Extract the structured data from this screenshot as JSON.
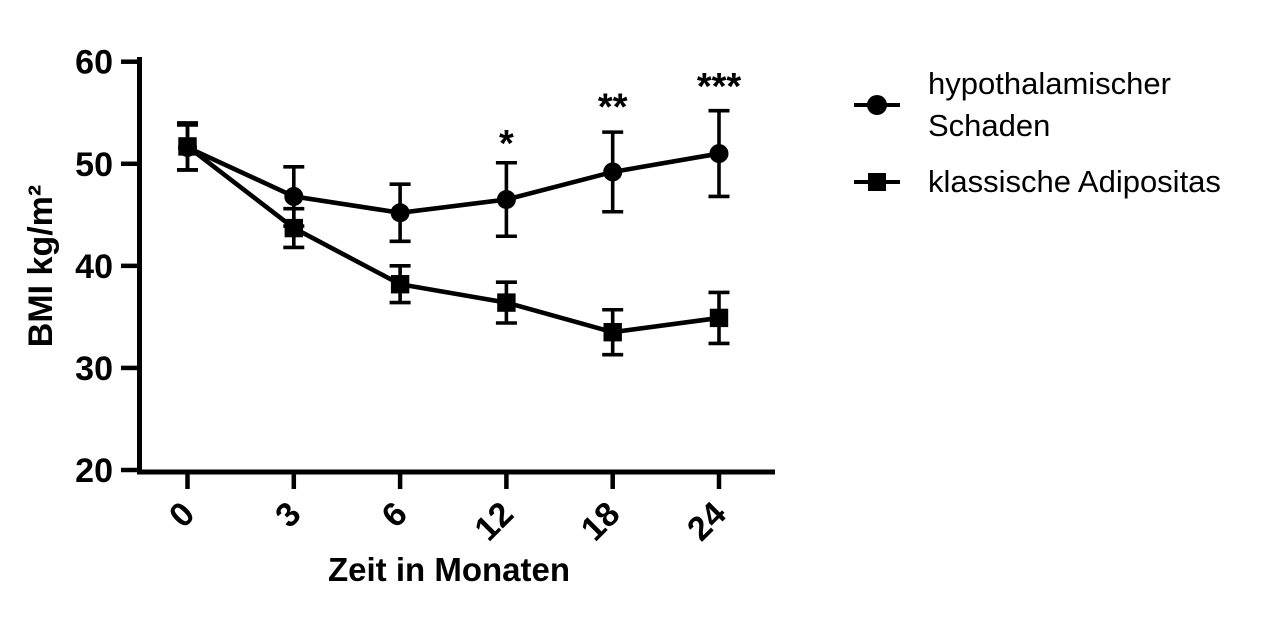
{
  "figure": {
    "background": "#ffffff",
    "foreground": "#000000"
  },
  "chart_data": {
    "type": "line",
    "title": "",
    "xlabel": "Zeit in Monaten",
    "ylabel": "BMI kg/m²",
    "categories": [
      "0",
      "3",
      "6",
      "12",
      "18",
      "24"
    ],
    "y_ticks": [
      "20",
      "30",
      "40",
      "50",
      "60"
    ],
    "ylim": [
      20,
      60
    ],
    "grid": false,
    "legend_position": "right",
    "series": [
      {
        "name": "hypothalamischer Schaden",
        "marker": "circle",
        "color": "#000000",
        "values": [
          51.6,
          46.8,
          45.2,
          46.5,
          49.2,
          51.0
        ],
        "errors": [
          2.2,
          2.9,
          2.8,
          3.6,
          3.9,
          4.2
        ]
      },
      {
        "name": "klassische Adipositas",
        "marker": "square",
        "color": "#000000",
        "values": [
          51.7,
          43.7,
          38.2,
          36.4,
          33.5,
          34.9
        ],
        "errors": [
          2.3,
          1.9,
          1.8,
          2.0,
          2.2,
          2.5
        ]
      }
    ],
    "annotations": [
      {
        "text": "*",
        "x_index": 3,
        "y_value": 52.6
      },
      {
        "text": "**",
        "x_index": 4,
        "y_value": 56.2
      },
      {
        "text": "***",
        "x_index": 5,
        "y_value": 58.2
      }
    ]
  },
  "legend": {
    "items": [
      {
        "label": "hypothalamischer Schaden",
        "marker": "circle"
      },
      {
        "label": "klassische Adipositas",
        "marker": "square"
      }
    ]
  }
}
